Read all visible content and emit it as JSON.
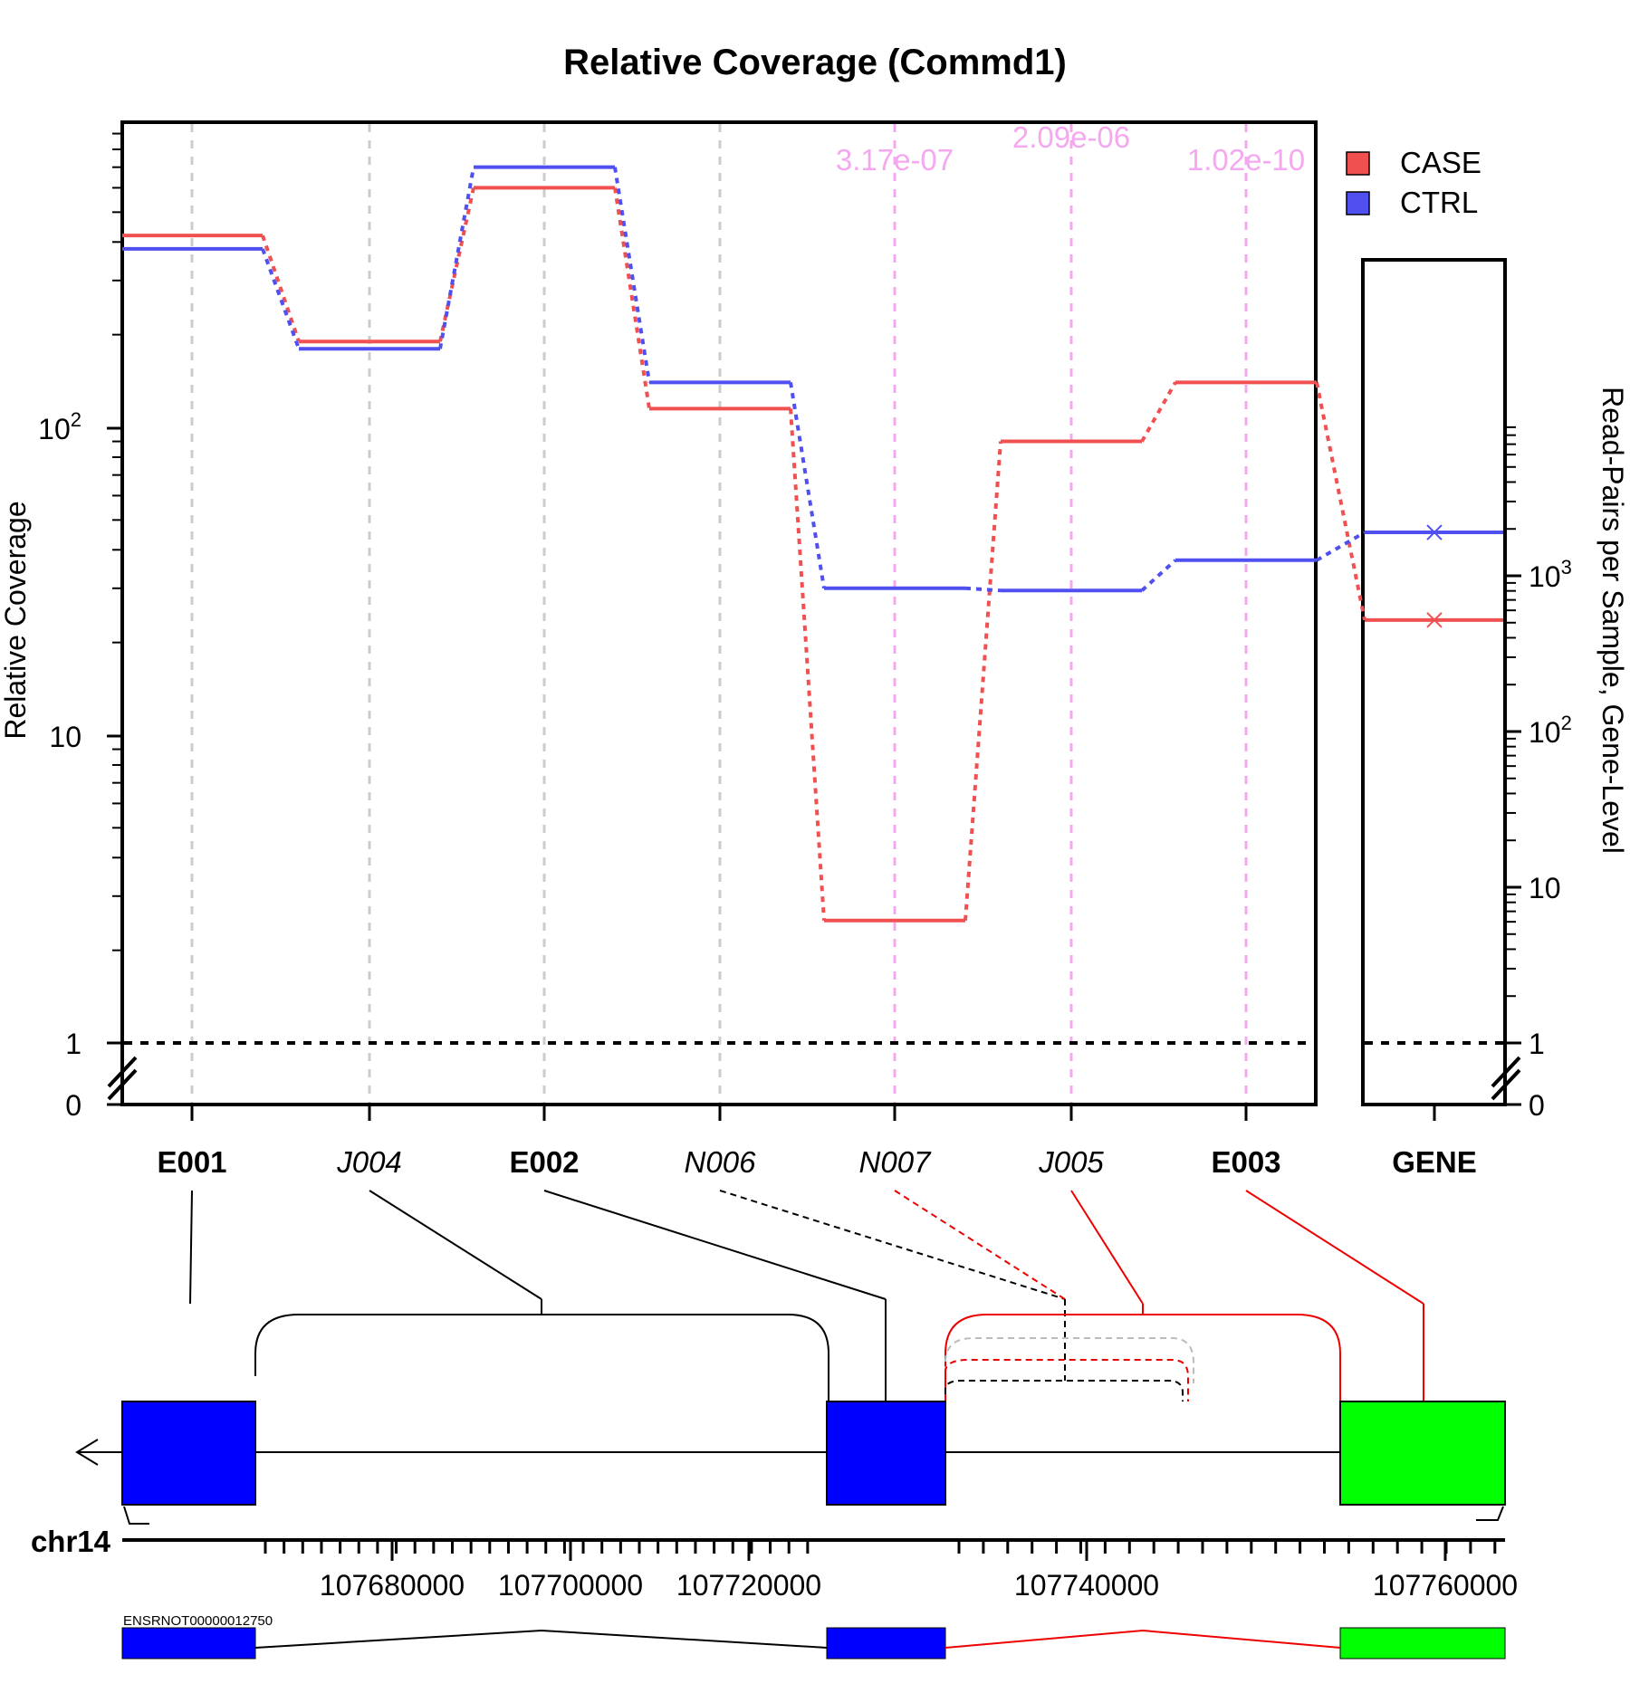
{
  "title": "Relative Coverage (Commd1)",
  "ylabel_left": "Relative Coverage",
  "ylabel_right": "Read-Pairs per Sample, Gene-Level",
  "left_ticks": [
    {
      "label": "0",
      "sup": ""
    },
    {
      "label": "1",
      "sup": ""
    },
    {
      "label": "10",
      "sup": ""
    },
    {
      "label": "10",
      "sup": "2"
    }
  ],
  "right_ticks": [
    {
      "label": "0",
      "sup": ""
    },
    {
      "label": "1",
      "sup": ""
    },
    {
      "label": "10",
      "sup": ""
    },
    {
      "label": "10",
      "sup": "2"
    },
    {
      "label": "10",
      "sup": "3"
    }
  ],
  "legend": [
    {
      "name": "CASE",
      "color": "#f05050"
    },
    {
      "name": "CTRL",
      "color": "#5050f0"
    }
  ],
  "features": [
    {
      "id": "E001",
      "style": "bold"
    },
    {
      "id": "J004",
      "style": "italic"
    },
    {
      "id": "E002",
      "style": "bold"
    },
    {
      "id": "N006",
      "style": "italic"
    },
    {
      "id": "N007",
      "style": "italic"
    },
    {
      "id": "J005",
      "style": "italic"
    },
    {
      "id": "E003",
      "style": "bold"
    }
  ],
  "gene_label": "GENE",
  "pvalues": [
    {
      "feature": "N007",
      "text": "3.17e-07"
    },
    {
      "feature": "J005",
      "text": "2.09e-06"
    },
    {
      "feature": "E003",
      "text": "1.02e-10"
    }
  ],
  "chart_data": {
    "type": "line",
    "y_scale": "log",
    "categories": [
      "E001",
      "J004",
      "E002",
      "N006",
      "N007",
      "J005",
      "E003"
    ],
    "series": [
      {
        "name": "CASE",
        "values": [
          420,
          190,
          600,
          115,
          2.5,
          90,
          140
        ]
      },
      {
        "name": "CTRL",
        "values": [
          380,
          180,
          700,
          140,
          30,
          29.5,
          37
        ]
      }
    ],
    "gene_level": {
      "CASE": 520,
      "CTRL": 1900
    }
  },
  "chromosome": "chr14",
  "genomic_ticks": [
    "107680000",
    "107700000",
    "107720000",
    "107740000",
    "107760000"
  ],
  "transcript": "ENSRNOT00000012750",
  "colors": {
    "case": "#f05050",
    "ctrl": "#5050f0",
    "pval": "#f5a8f0",
    "exon_blue": "#0000ff",
    "exon_green": "#00ff00",
    "sig_red": "#ee0000"
  }
}
